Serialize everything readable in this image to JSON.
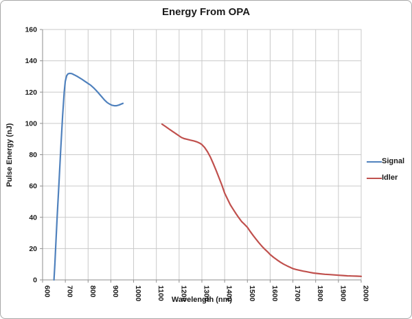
{
  "chart_data": {
    "type": "line",
    "title": "Energy From OPA",
    "xlabel": "Wavelength (nm)",
    "ylabel": "Pulse Energy (nJ)",
    "xlim": [
      600,
      2000
    ],
    "ylim": [
      0,
      160
    ],
    "x_ticks": [
      600,
      700,
      800,
      900,
      1000,
      1100,
      1200,
      1300,
      1400,
      1500,
      1600,
      1700,
      1800,
      1900,
      2000
    ],
    "y_ticks": [
      0,
      20,
      40,
      60,
      80,
      100,
      120,
      140,
      160
    ],
    "grid": "both",
    "legend_position": "right-outside",
    "colors": {
      "signal": "#4F81BD",
      "idler": "#C0504D",
      "gridline": "#C9C9C9",
      "axis": "#8E8E8E",
      "text": "#1A1A1A",
      "chart_border": "#A6A6A6",
      "background": "#FFFFFF"
    },
    "series": [
      {
        "name": "Signal",
        "color": "#4F81BD",
        "points": [
          [
            650,
            0
          ],
          [
            654,
            10
          ],
          [
            658,
            22
          ],
          [
            664,
            40
          ],
          [
            672,
            62
          ],
          [
            680,
            84
          ],
          [
            688,
            105
          ],
          [
            695,
            120
          ],
          [
            700,
            127
          ],
          [
            706,
            130.5
          ],
          [
            712,
            131.7
          ],
          [
            720,
            132
          ],
          [
            728,
            131.8
          ],
          [
            740,
            131
          ],
          [
            755,
            129.8
          ],
          [
            770,
            128.5
          ],
          [
            785,
            127
          ],
          [
            800,
            125.5
          ],
          [
            812,
            124.3
          ],
          [
            824,
            122.8
          ],
          [
            836,
            121
          ],
          [
            848,
            119
          ],
          [
            860,
            117
          ],
          [
            872,
            115
          ],
          [
            884,
            113.3
          ],
          [
            896,
            112.2
          ],
          [
            905,
            111.6
          ],
          [
            915,
            111.3
          ],
          [
            925,
            111.3
          ],
          [
            935,
            111.7
          ],
          [
            945,
            112.3
          ],
          [
            953,
            112.8
          ]
        ]
      },
      {
        "name": "Idler",
        "color": "#C0504D",
        "points": [
          [
            1125,
            99.5
          ],
          [
            1140,
            98
          ],
          [
            1155,
            96.5
          ],
          [
            1170,
            95
          ],
          [
            1185,
            93.5
          ],
          [
            1200,
            92
          ],
          [
            1210,
            91
          ],
          [
            1222,
            90.3
          ],
          [
            1235,
            89.8
          ],
          [
            1250,
            89.3
          ],
          [
            1265,
            88.8
          ],
          [
            1278,
            88.2
          ],
          [
            1290,
            87.4
          ],
          [
            1300,
            86.5
          ],
          [
            1312,
            84.6
          ],
          [
            1325,
            81.8
          ],
          [
            1338,
            78.3
          ],
          [
            1350,
            74.3
          ],
          [
            1363,
            69.8
          ],
          [
            1375,
            65.3
          ],
          [
            1388,
            60.5
          ],
          [
            1400,
            55.5
          ],
          [
            1413,
            51.5
          ],
          [
            1425,
            48
          ],
          [
            1438,
            45
          ],
          [
            1450,
            42.3
          ],
          [
            1463,
            39.6
          ],
          [
            1475,
            37.2
          ],
          [
            1488,
            35.4
          ],
          [
            1500,
            33.6
          ],
          [
            1513,
            30.8
          ],
          [
            1525,
            28.4
          ],
          [
            1538,
            26
          ],
          [
            1550,
            23.8
          ],
          [
            1563,
            21.6
          ],
          [
            1575,
            19.8
          ],
          [
            1588,
            18
          ],
          [
            1600,
            16.2
          ],
          [
            1615,
            14.4
          ],
          [
            1630,
            12.8
          ],
          [
            1645,
            11.3
          ],
          [
            1660,
            10
          ],
          [
            1675,
            8.9
          ],
          [
            1690,
            7.9
          ],
          [
            1700,
            7.2
          ],
          [
            1715,
            6.6
          ],
          [
            1730,
            6.1
          ],
          [
            1745,
            5.6
          ],
          [
            1760,
            5.2
          ],
          [
            1775,
            4.8
          ],
          [
            1790,
            4.4
          ],
          [
            1800,
            4.2
          ],
          [
            1820,
            3.9
          ],
          [
            1840,
            3.6
          ],
          [
            1860,
            3.4
          ],
          [
            1880,
            3.2
          ],
          [
            1900,
            3
          ],
          [
            1920,
            2.8
          ],
          [
            1940,
            2.6
          ],
          [
            1960,
            2.5
          ],
          [
            1980,
            2.4
          ],
          [
            2000,
            2.3
          ]
        ]
      }
    ]
  }
}
